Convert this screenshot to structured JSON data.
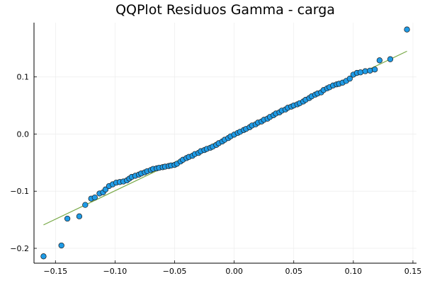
{
  "chart_data": {
    "type": "scatter",
    "title": "QQPlot Residuos Gamma - carga",
    "xlabel": "",
    "ylabel": "",
    "xlim": [
      -0.168,
      0.153
    ],
    "ylim": [
      -0.226,
      0.195
    ],
    "xticks": [
      -0.15,
      -0.1,
      -0.05,
      0.0,
      0.05,
      0.1,
      0.15
    ],
    "xtick_labels": [
      "−0.15",
      "−0.10",
      "−0.05",
      "0.00",
      "0.05",
      "0.10",
      "0.15"
    ],
    "yticks": [
      -0.2,
      -0.1,
      0.0,
      0.1
    ],
    "ytick_labels": [
      "−0.2",
      "−0.1",
      "0.0",
      "0.1"
    ],
    "grid": true,
    "legend": "none",
    "series": [
      {
        "kind": "points",
        "color": "#1f9be6",
        "x": [
          -0.16,
          -0.145,
          -0.14,
          -0.13,
          -0.125,
          -0.12,
          -0.117,
          -0.113,
          -0.11,
          -0.108,
          -0.105,
          -0.102,
          -0.099,
          -0.096,
          -0.093,
          -0.09,
          -0.088,
          -0.086,
          -0.083,
          -0.08,
          -0.078,
          -0.075,
          -0.073,
          -0.07,
          -0.068,
          -0.065,
          -0.063,
          -0.06,
          -0.058,
          -0.055,
          -0.053,
          -0.05,
          -0.048,
          -0.045,
          -0.043,
          -0.04,
          -0.038,
          -0.035,
          -0.033,
          -0.03,
          -0.028,
          -0.025,
          -0.023,
          -0.02,
          -0.018,
          -0.015,
          -0.013,
          -0.01,
          -0.008,
          -0.005,
          -0.003,
          0.0,
          0.003,
          0.005,
          0.008,
          0.01,
          0.013,
          0.015,
          0.018,
          0.02,
          0.023,
          0.025,
          0.028,
          0.03,
          0.033,
          0.035,
          0.038,
          0.04,
          0.043,
          0.045,
          0.048,
          0.05,
          0.053,
          0.055,
          0.058,
          0.06,
          0.063,
          0.065,
          0.068,
          0.07,
          0.073,
          0.075,
          0.078,
          0.08,
          0.083,
          0.086,
          0.088,
          0.091,
          0.094,
          0.097,
          0.1,
          0.103,
          0.106,
          0.11,
          0.114,
          0.118,
          0.122,
          0.131,
          0.145
        ],
        "y": [
          -0.214,
          -0.195,
          -0.148,
          -0.144,
          -0.124,
          -0.113,
          -0.111,
          -0.104,
          -0.102,
          -0.097,
          -0.091,
          -0.088,
          -0.085,
          -0.084,
          -0.083,
          -0.081,
          -0.078,
          -0.075,
          -0.073,
          -0.071,
          -0.069,
          -0.067,
          -0.065,
          -0.063,
          -0.061,
          -0.06,
          -0.059,
          -0.058,
          -0.057,
          -0.056,
          -0.055,
          -0.054,
          -0.052,
          -0.048,
          -0.045,
          -0.042,
          -0.04,
          -0.038,
          -0.035,
          -0.033,
          -0.03,
          -0.028,
          -0.026,
          -0.024,
          -0.022,
          -0.019,
          -0.016,
          -0.013,
          -0.01,
          -0.007,
          -0.004,
          -0.001,
          0.002,
          0.004,
          0.007,
          0.009,
          0.012,
          0.015,
          0.017,
          0.02,
          0.022,
          0.025,
          0.027,
          0.03,
          0.033,
          0.036,
          0.038,
          0.041,
          0.043,
          0.046,
          0.048,
          0.05,
          0.052,
          0.054,
          0.057,
          0.06,
          0.063,
          0.066,
          0.069,
          0.071,
          0.073,
          0.077,
          0.08,
          0.082,
          0.085,
          0.087,
          0.088,
          0.09,
          0.093,
          0.097,
          0.104,
          0.107,
          0.108,
          0.11,
          0.111,
          0.113,
          0.129,
          0.131,
          0.183
        ]
      },
      {
        "kind": "line",
        "color": "#77a845",
        "x": [
          -0.16,
          0.145
        ],
        "y": [
          -0.159,
          0.145
        ]
      }
    ]
  }
}
